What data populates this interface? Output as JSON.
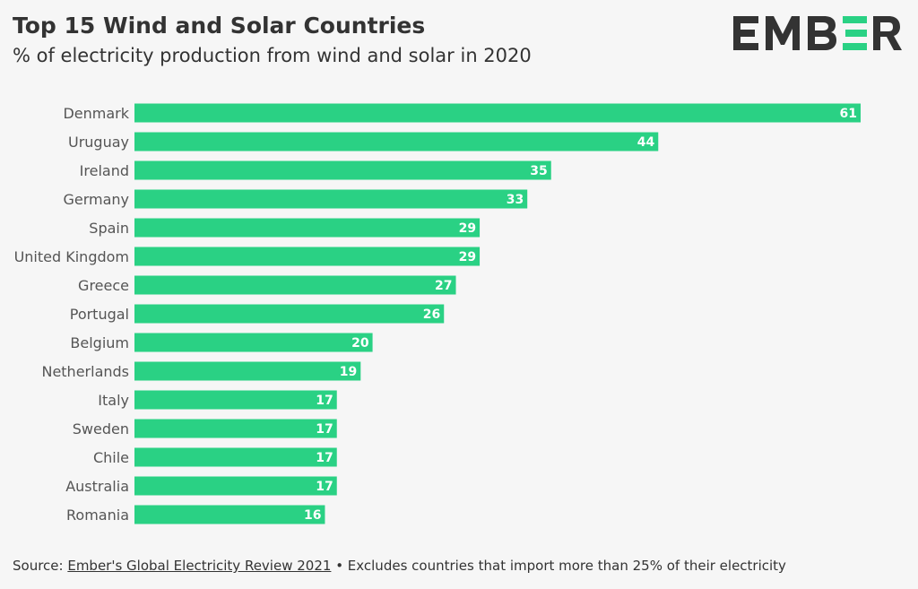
{
  "title": "Top 15 Wind and Solar Countries",
  "subtitle": "% of electricity production from wind and solar in 2020",
  "logo_text": "EMBER",
  "source": {
    "prefix": "Source: ",
    "link": "Ember's Global Electricity Review 2021",
    "suffix": " • Excludes countries that import more than 25% of their electricity"
  },
  "colors": {
    "bar": "#2ad184",
    "text": "#333333",
    "background": "#f6f6f6"
  },
  "chart_data": {
    "type": "bar",
    "orientation": "horizontal",
    "categories": [
      "Denmark",
      "Uruguay",
      "Ireland",
      "Germany",
      "Spain",
      "United Kingdom",
      "Greece",
      "Portugal",
      "Belgium",
      "Netherlands",
      "Italy",
      "Sweden",
      "Chile",
      "Australia",
      "Romania"
    ],
    "values": [
      61,
      44,
      35,
      33,
      29,
      29,
      27,
      26,
      20,
      19,
      17,
      17,
      17,
      17,
      16
    ],
    "title": "Top 15 Wind and Solar Countries",
    "subtitle": "% of electricity production from wind and solar in 2020",
    "xlim": [
      0,
      61
    ],
    "grid": false,
    "data_labels": true
  }
}
